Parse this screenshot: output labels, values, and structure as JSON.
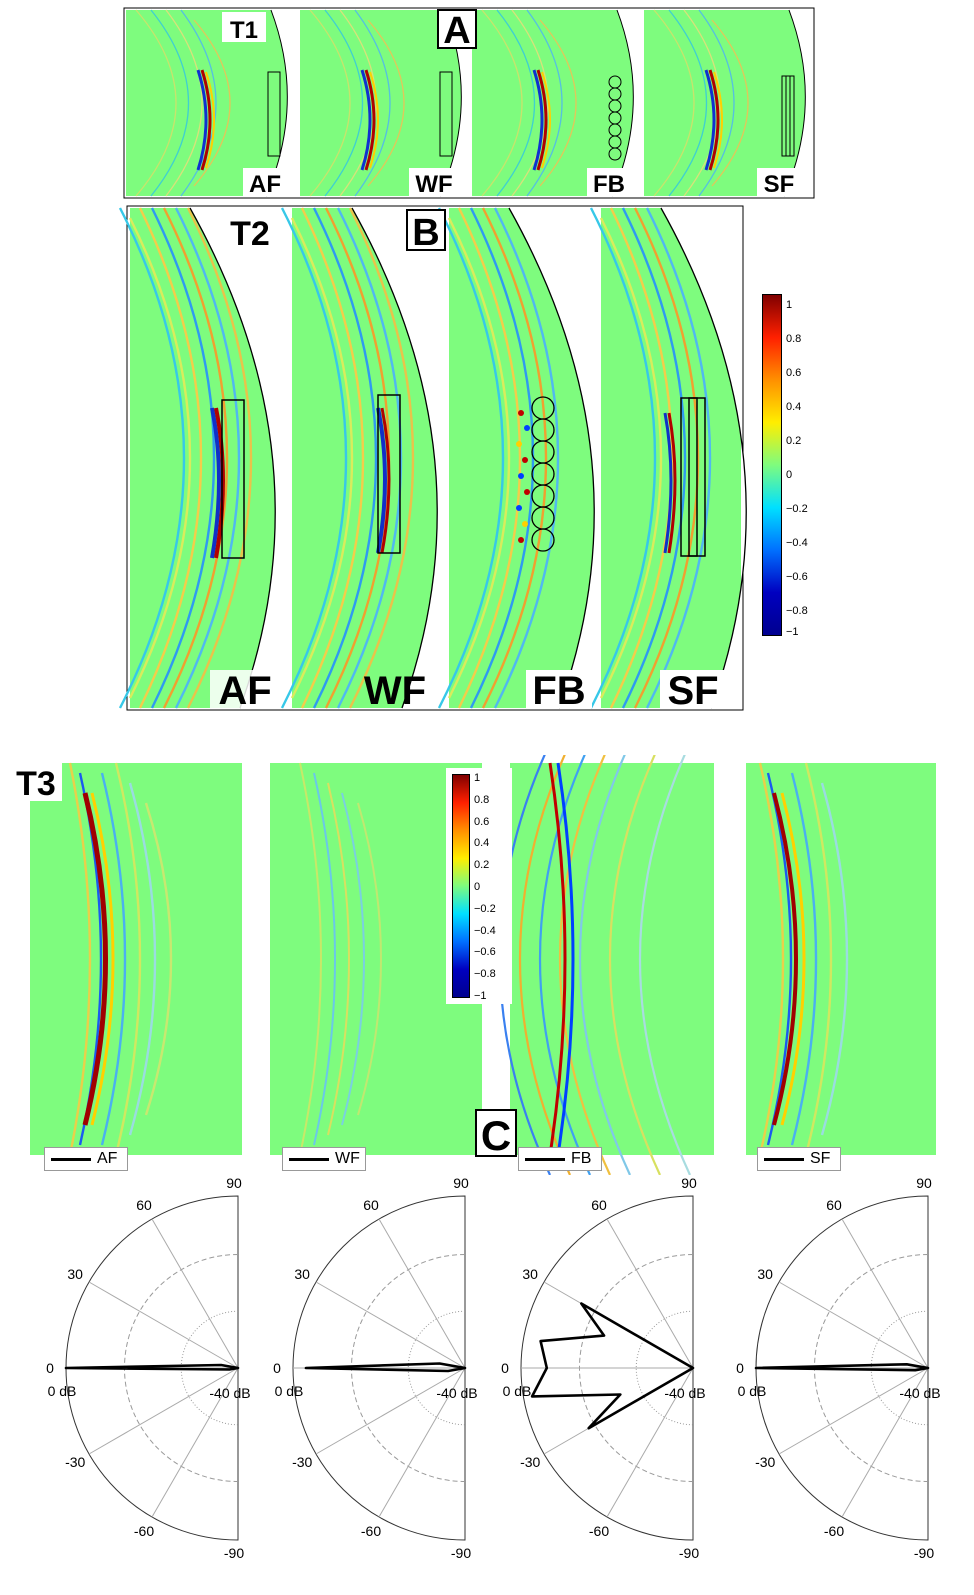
{
  "colors": {
    "field_background": "#7efc7e",
    "colormap": [
      "#00008f",
      "#0050ff",
      "#00dfff",
      "#7efc7e",
      "#ffdf00",
      "#ff5000",
      "#800000"
    ],
    "frame": "#000000",
    "polar_curve": "#000000",
    "polar_grid": "#9a9a9a"
  },
  "cases": [
    "AF",
    "WF",
    "FB",
    "SF"
  ],
  "panel_a": {
    "letter": "A",
    "time_label": "T1",
    "case_labels": [
      "AF",
      "WF",
      "FB",
      "SF"
    ]
  },
  "panel_b": {
    "letter": "B",
    "time_label": "T2",
    "case_labels": [
      "AF",
      "WF",
      "FB",
      "SF"
    ],
    "colorbar_ticks": [
      "1",
      "0.8",
      "0.6",
      "0.4",
      "0.2",
      "0",
      "−0.2",
      "−0.4",
      "−0.6",
      "−0.8",
      "−1"
    ]
  },
  "panel_c": {
    "letter": "C",
    "time_label": "T3",
    "colorbar_ticks": [
      "1",
      "0.8",
      "0.6",
      "0.4",
      "0.2",
      "0",
      "−0.2",
      "−0.4",
      "−0.6",
      "−0.8",
      "−1"
    ],
    "legends": [
      "AF",
      "WF",
      "FB",
      "SF"
    ]
  },
  "polar": {
    "angle_labels": [
      "90",
      "60",
      "30",
      "0",
      "-30",
      "-60",
      "-90"
    ],
    "radial_labels": [
      "0 dB",
      "-40 dB"
    ],
    "radial_labels_alt": [
      "0 dB",
      "-40'dB",
      "0 dB",
      "40 dB"
    ],
    "radial_range_db": [
      -40,
      0
    ]
  },
  "chart_data": {
    "type": "polar",
    "theta_range": [
      -90,
      90
    ],
    "r_range_db": [
      -40,
      0
    ],
    "series": [
      {
        "name": "AF",
        "theta": [
          -90,
          -60,
          -30,
          -20,
          -10,
          0,
          10,
          20,
          30,
          60,
          90
        ],
        "r_db": [
          -40,
          -40,
          -40,
          -40,
          -38,
          0,
          -36,
          -40,
          -40,
          -40,
          -40
        ]
      },
      {
        "name": "WF",
        "theta": [
          -90,
          -60,
          -30,
          -20,
          -10,
          0,
          10,
          20,
          30,
          60,
          90
        ],
        "r_db": [
          -40,
          -40,
          -40,
          -40,
          -36,
          -3,
          -34,
          -40,
          -40,
          -40,
          -40
        ]
      },
      {
        "name": "FB",
        "theta": [
          -90,
          -60,
          -30,
          -20,
          -10,
          0,
          10,
          20,
          30,
          60,
          90
        ],
        "r_db": [
          -40,
          -40,
          -12,
          -22,
          -2,
          -6,
          -4,
          -18,
          -10,
          -40,
          -40
        ]
      },
      {
        "name": "SF",
        "theta": [
          -90,
          -60,
          -30,
          -20,
          -10,
          0,
          10,
          20,
          30,
          60,
          90
        ],
        "r_db": [
          -40,
          -40,
          -40,
          -40,
          -37,
          0,
          -35,
          -40,
          -40,
          -40,
          -40
        ]
      }
    ]
  }
}
